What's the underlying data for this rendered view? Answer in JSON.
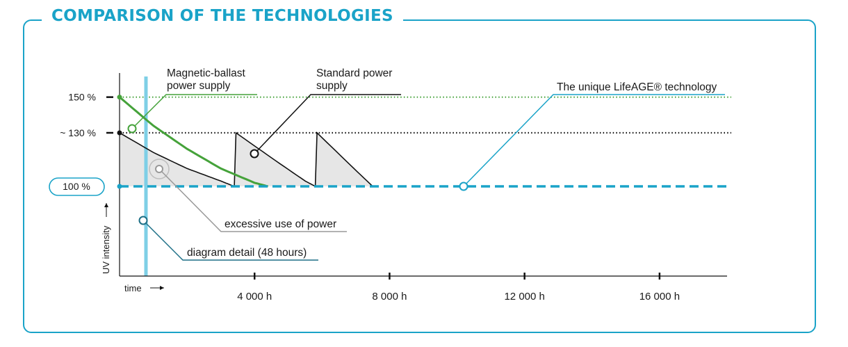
{
  "title": "COMPARISON OF THE TECHNOLOGIES",
  "colors": {
    "accent": "#1aa3c8",
    "green": "#45a23a",
    "black": "#111111",
    "light_blue": "#7ecfe6",
    "grey_fill": "#e6e6e6",
    "grey_marker": "#999999"
  },
  "chart_data": {
    "type": "line",
    "xlabel": "time",
    "ylabel": "UV intensity",
    "x_unit": "h",
    "y_unit": "%",
    "xlim": [
      0,
      18000
    ],
    "x_ticks": [
      {
        "value": 4000,
        "label": "4 000 h"
      },
      {
        "value": 8000,
        "label": "8 000 h"
      },
      {
        "value": 12000,
        "label": "12 000 h"
      },
      {
        "value": 16000,
        "label": "16 000 h"
      }
    ],
    "y_ticks": [
      {
        "value": 150,
        "label": "150 %"
      },
      {
        "value": 130,
        "label": "~ 130 %"
      },
      {
        "value": 100,
        "label": "100 %"
      }
    ],
    "series": [
      {
        "name": "Magnetic-ballast power supply",
        "color": "#45a23a",
        "x": [
          0,
          1000,
          2000,
          3000,
          4000,
          4400
        ],
        "y": [
          150,
          134,
          121,
          110,
          102,
          100
        ]
      },
      {
        "name": "Standard power supply",
        "color": "#111111",
        "x": [
          0,
          1000,
          2000,
          3000,
          3400,
          3450,
          4500,
          5500,
          5800,
          5850,
          7000,
          7500
        ],
        "y": [
          130,
          119,
          110,
          103,
          100,
          130,
          116,
          103,
          100,
          130,
          109,
          100
        ]
      },
      {
        "name": "The unique LifeAGE® technology",
        "color": "#1aa3c8",
        "x": [
          0,
          18000
        ],
        "y": [
          100,
          100
        ]
      }
    ],
    "reference_lines": [
      {
        "y": 150,
        "color": "#45a23a",
        "style": "dotted"
      },
      {
        "y": 130,
        "color": "#111111",
        "style": "dotted"
      }
    ],
    "diagram_detail_x": 700,
    "annotations": [
      {
        "id": "magnetic",
        "lines": [
          "Magnetic-ballast",
          "power supply"
        ]
      },
      {
        "id": "standard",
        "lines": [
          "Standard power",
          "supply"
        ]
      },
      {
        "id": "lifeage",
        "lines": [
          "The unique LifeAGE® technology"
        ]
      },
      {
        "id": "excessive",
        "lines": [
          "excessive use of power"
        ]
      },
      {
        "id": "detail",
        "lines": [
          "diagram detail (48 hours)"
        ]
      }
    ]
  }
}
